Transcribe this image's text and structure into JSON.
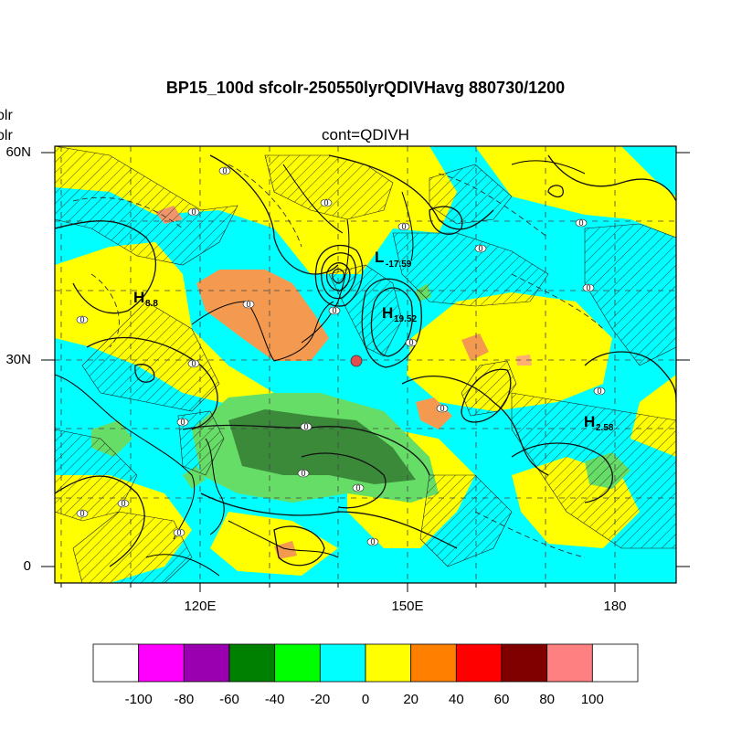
{
  "title": "BP15_100d sfcolr-250550lyrQDIVHavg  880730/1200",
  "subtitle": "cont=QDIVH",
  "left_edge_labels": [
    "olr",
    "olr"
  ],
  "latitude_labels": [
    "60N",
    "30N",
    "0"
  ],
  "longitude_labels": [
    "120E",
    "150E",
    "180"
  ],
  "colorbar": {
    "levels": [
      "-100",
      "-80",
      "-60",
      "-40",
      "-20",
      "0",
      "20",
      "40",
      "60",
      "80",
      "100"
    ],
    "colors": [
      "#ffffff",
      "#ff00ff",
      "#9a00b0",
      "#008000",
      "#00ff00",
      "#00ffff",
      "#ffff00",
      "#ff8000",
      "#ff0000",
      "#800000",
      "#ff8080",
      "#ffffff"
    ]
  },
  "pressure_centers": [
    {
      "type": "H",
      "value": "8.8"
    },
    {
      "type": "L",
      "value": "-17.59"
    },
    {
      "type": "H",
      "value": "19.52"
    },
    {
      "type": "H",
      "value": "2.58"
    }
  ],
  "contour_label": "0",
  "map_colors": {
    "cyan": "#00ffff",
    "yellow": "#ffff00",
    "orange": "#f39a50",
    "light_green": "#66dd66",
    "dark_green": "#3a8a3a",
    "salmon": "#ff8a70",
    "red_dot": "#e05050"
  }
}
